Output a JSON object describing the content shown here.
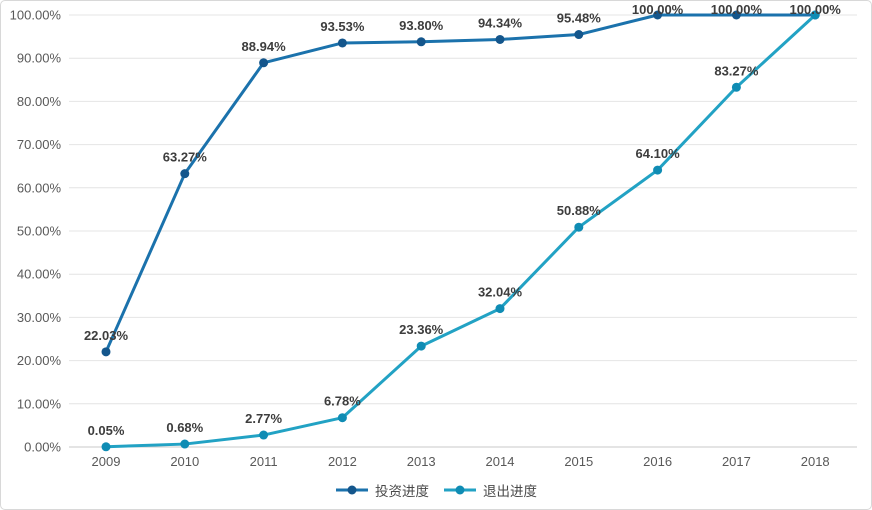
{
  "chart_data": {
    "type": "line",
    "title": "",
    "xlabel": "",
    "ylabel": "",
    "categories": [
      "2009",
      "2010",
      "2011",
      "2012",
      "2013",
      "2014",
      "2015",
      "2016",
      "2017",
      "2018"
    ],
    "series": [
      {
        "name": "投资进度",
        "color": "#1b72ac",
        "marker_color": "#14568c",
        "values": [
          22.03,
          63.27,
          88.94,
          93.53,
          93.8,
          94.34,
          95.48,
          100.0,
          100.0,
          100.0
        ],
        "labels": [
          "22.03%",
          "63.27%",
          "88.94%",
          "93.53%",
          "93.80%",
          "94.34%",
          "95.48%",
          "100.00%",
          "100.00%",
          "100.00%"
        ]
      },
      {
        "name": "退出进度",
        "color": "#22a2c4",
        "marker_color": "#0f8cb4",
        "values": [
          0.05,
          0.68,
          2.77,
          6.78,
          23.36,
          32.04,
          50.88,
          64.1,
          83.27,
          100.0
        ],
        "labels": [
          "0.05%",
          "0.68%",
          "2.77%",
          "6.78%",
          "23.36%",
          "32.04%",
          "50.88%",
          "64.10%",
          "83.27%",
          "100.00%"
        ]
      }
    ],
    "yticks": [
      {
        "value": 0,
        "label": "0.00%"
      },
      {
        "value": 10,
        "label": "10.00%"
      },
      {
        "value": 20,
        "label": "20.00%"
      },
      {
        "value": 30,
        "label": "30.00%"
      },
      {
        "value": 40,
        "label": "40.00%"
      },
      {
        "value": 50,
        "label": "50.00%"
      },
      {
        "value": 60,
        "label": "60.00%"
      },
      {
        "value": 70,
        "label": "70.00%"
      },
      {
        "value": 80,
        "label": "80.00%"
      },
      {
        "value": 90,
        "label": "90.00%"
      },
      {
        "value": 100,
        "label": "100.00%"
      }
    ],
    "ylim": [
      0,
      100
    ],
    "grid": true,
    "legend_position": "bottom"
  },
  "styles": {
    "background": "#ffffff",
    "border_color": "#d8d8d8",
    "grid_color": "#e4e4e4",
    "axis_line_color": "#c9c9c9",
    "tick_text_color": "#595959",
    "data_label_color": "#3d3d3d"
  }
}
